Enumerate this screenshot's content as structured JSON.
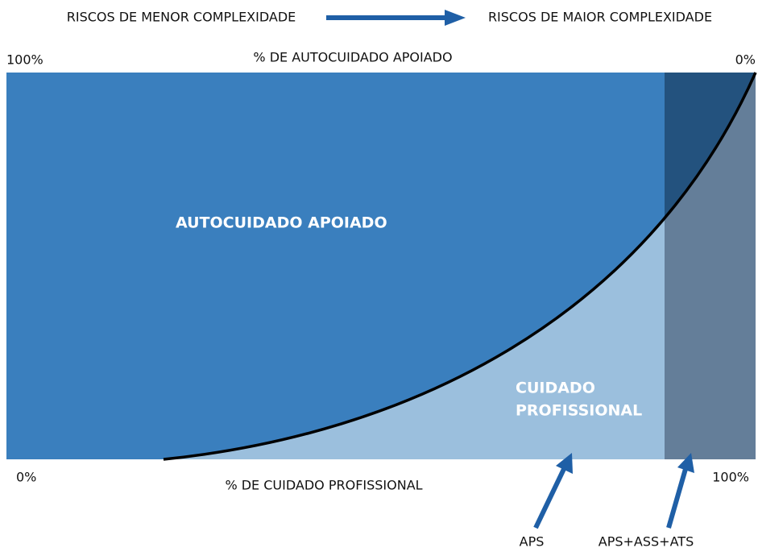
{
  "header": {
    "left": "RISCOS DE MENOR COMPLEXIDADE",
    "right": "RISCOS DE MAIOR COMPLEXIDADE"
  },
  "axis": {
    "top_left": "100%",
    "top_label": "% DE AUTOCUIDADO APOIADO",
    "top_right": "0%",
    "bottom_left": "0%",
    "bottom_label": "% DE CUIDADO PROFISSIONAL",
    "bottom_right": "100%"
  },
  "regions": {
    "self_care": "AUTOCUIDADO APOIADO",
    "professional": [
      "CUIDADO",
      "PROFISSIONAL"
    ]
  },
  "pointers": [
    "APS",
    "APS+ASS+ATS"
  ]
}
